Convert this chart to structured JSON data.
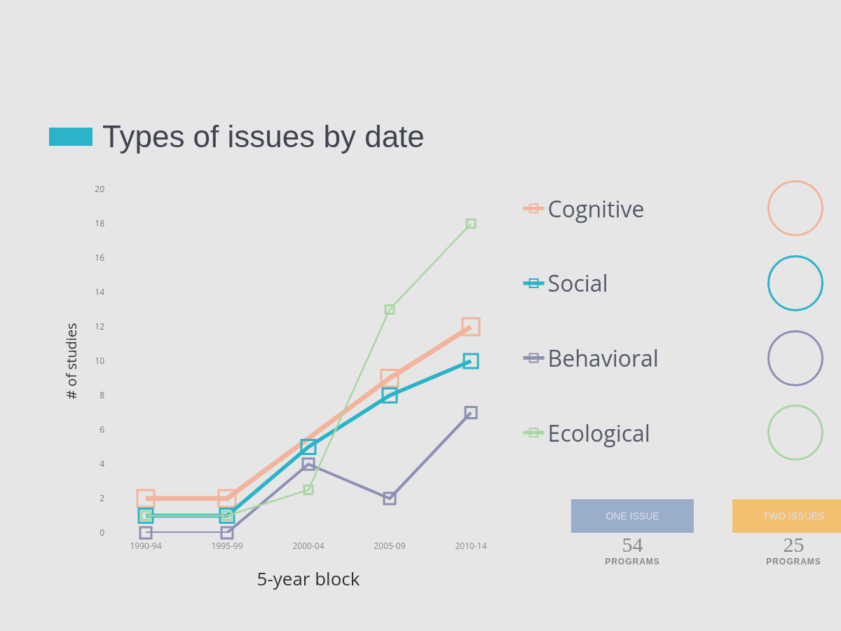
{
  "chart_data": {
    "type": "line",
    "title": "Types of issues by date",
    "xlabel": "5-year block",
    "ylabel": "# of studies",
    "categories": [
      "1990-94",
      "1995-99",
      "2000-04",
      "2005-09",
      "2010-14"
    ],
    "series": [
      {
        "name": "Cognitive",
        "color": "#f2b49c",
        "values": [
          2,
          2,
          null,
          9,
          12
        ]
      },
      {
        "name": "Social",
        "color": "#2bb3c8",
        "values": [
          1,
          1,
          5,
          8,
          10
        ]
      },
      {
        "name": "Behavioral",
        "color": "#8c90b4",
        "values": [
          0,
          0,
          4,
          2,
          7
        ]
      },
      {
        "name": "Ecological",
        "color": "#a9d6a4",
        "values": [
          1,
          1,
          2.5,
          13,
          18
        ]
      }
    ],
    "ylim": [
      0,
      20
    ],
    "yticks": [
      0,
      2,
      4,
      6,
      8,
      10,
      12,
      14,
      16,
      18,
      20
    ],
    "grid": false,
    "legend": "right",
    "marker": "square",
    "line_style": "solid",
    "annotations": [
      "ONE ISSUE",
      "54",
      "PROGRAMS",
      "TWO ISSUES",
      "25",
      "PROGRAMS"
    ]
  }
}
